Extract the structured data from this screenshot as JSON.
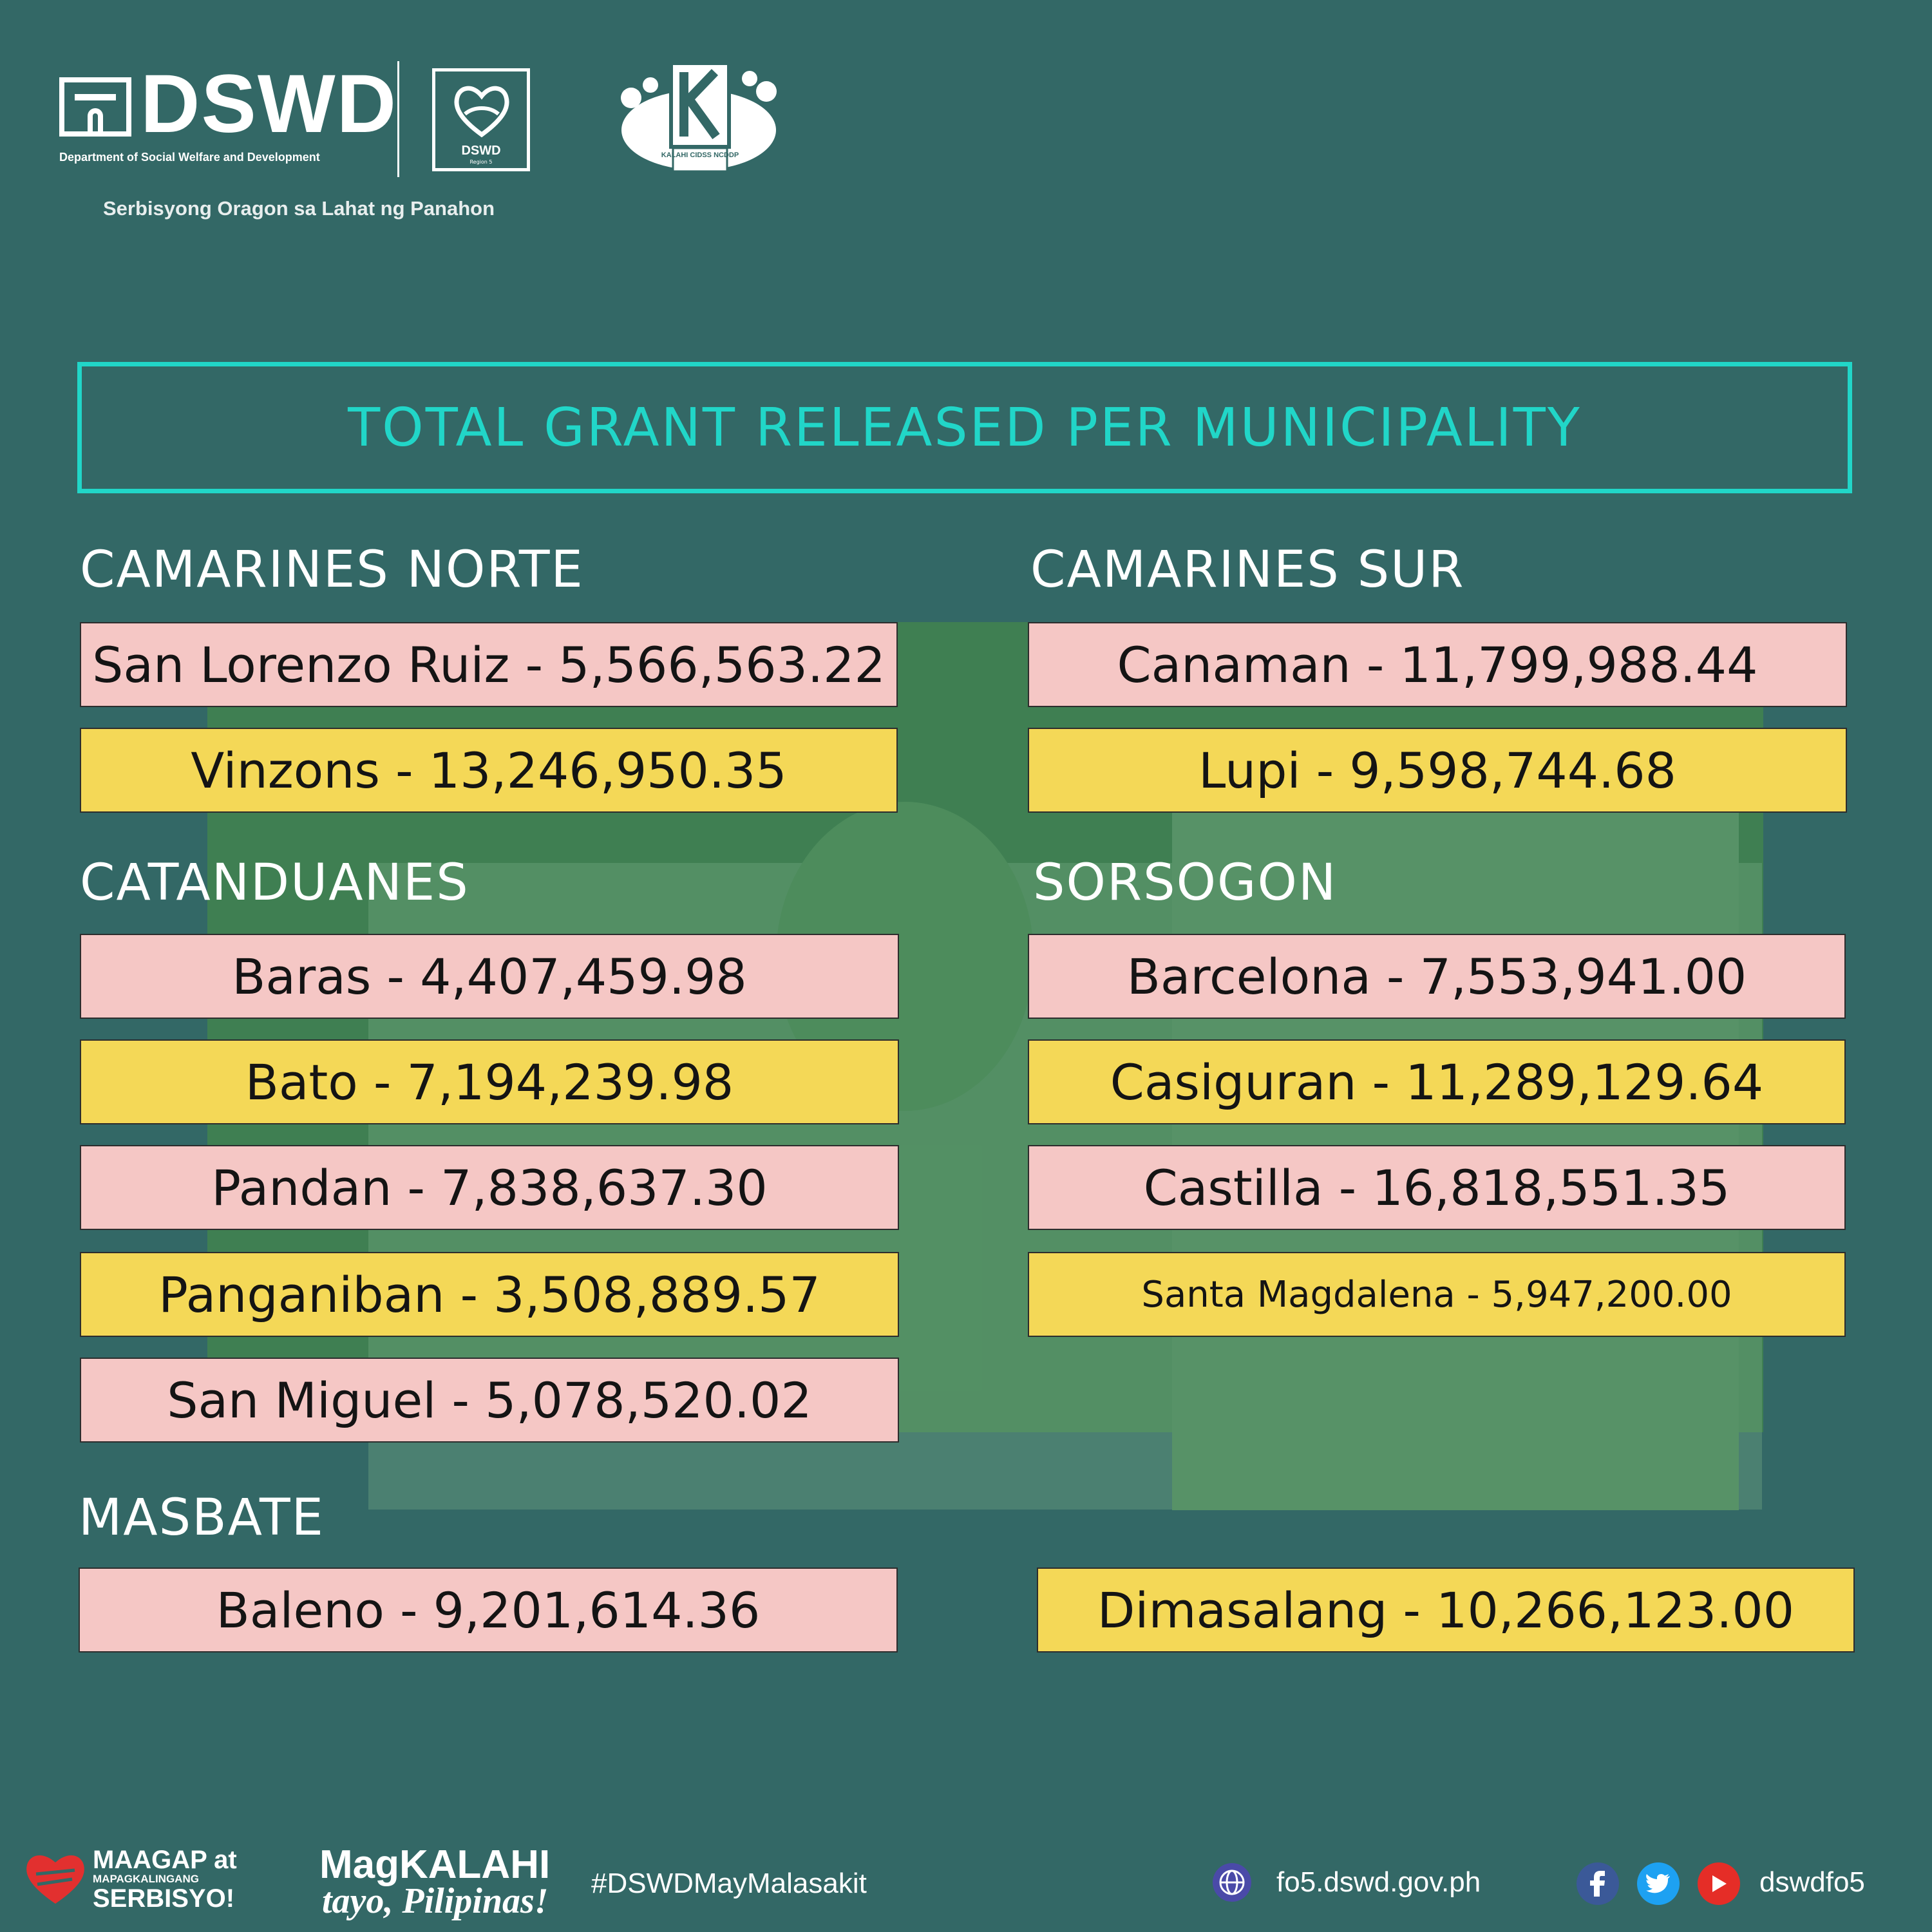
{
  "header": {
    "logo_text": "DSWD",
    "logo_subtitle": "Department of Social Welfare and Development",
    "region_logo_name": "DSWD",
    "region_logo_sub": "Region 5",
    "kalahi_logo_text": "KALAHI CIDSS NCDDP",
    "tagline": "Serbisyong Oragon sa Lahat ng Panahon"
  },
  "title": "TOTAL GRANT RELEASED PER MUNICIPALITY",
  "provinces": {
    "camarines_norte": {
      "name": "CAMARINES NORTE",
      "items": [
        "San Lorenzo Ruiz - 5,566,563.22",
        "Vinzons - 13,246,950.35"
      ]
    },
    "camarines_sur": {
      "name": "CAMARINES SUR",
      "items": [
        "Canaman - 11,799,988.44",
        "Lupi - 9,598,744.68"
      ]
    },
    "catanduanes": {
      "name": "CATANDUANES",
      "items": [
        "Baras - 4,407,459.98",
        "Bato - 7,194,239.98",
        "Pandan - 7,838,637.30",
        "Panganiban - 3,508,889.57",
        "San Miguel - 5,078,520.02"
      ]
    },
    "sorsogon": {
      "name": "SORSOGON",
      "items": [
        "Barcelona - 7,553,941.00",
        "Casiguran - 11,289,129.64",
        "Castilla - 16,818,551.35",
        "Santa Magdalena - 5,947,200.00"
      ]
    },
    "masbate": {
      "name": "MASBATE",
      "items": [
        "Baleno - 9,201,614.36",
        "Dimasalang - 10,266,123.00"
      ]
    }
  },
  "footer": {
    "maagap_line1": "MAAGAP at",
    "maagap_line2": "MAPAGKALINGANG",
    "maagap_line3": "SERBISYO!",
    "magkalahi_line1": "MagKALAHI",
    "magkalahi_line2": "tayo, Pilipinas!",
    "hashtag": "#DSWDMayMalasakit",
    "website": "fo5.dswd.gov.ph",
    "social_handle": "dswdfo5",
    "icons": [
      "globe-icon",
      "facebook-icon",
      "twitter-icon",
      "youtube-icon"
    ]
  },
  "colors": {
    "background": "#336866",
    "accent": "#21d6c8",
    "card_pink": "#f5c7c5",
    "card_yellow": "#f4d857"
  }
}
